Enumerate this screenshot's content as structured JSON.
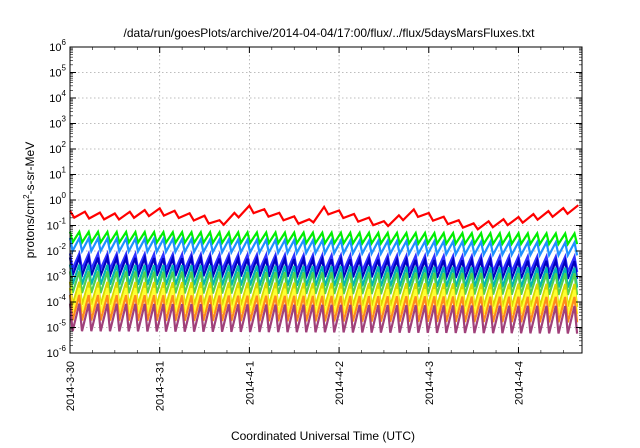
{
  "chart_data": {
    "type": "line",
    "title": "/data/run/goesPlots/archive/2014-04-04/17:00/flux/../flux/5daysMarsFluxes.txt",
    "xlabel": "Coordinated Universal Time (UTC)",
    "ylabel": "protons/cm²-s-sr-MeV",
    "y_scale": "log",
    "ylim": [
      1e-06,
      1000000
    ],
    "y_ticks": [
      {
        "value": 1e-06,
        "base": "10",
        "exp": "-6"
      },
      {
        "value": 1e-05,
        "base": "10",
        "exp": "-5"
      },
      {
        "value": 0.0001,
        "base": "10",
        "exp": "-4"
      },
      {
        "value": 0.001,
        "base": "10",
        "exp": "-3"
      },
      {
        "value": 0.01,
        "base": "10",
        "exp": "-2"
      },
      {
        "value": 0.1,
        "base": "10",
        "exp": "-1"
      },
      {
        "value": 1,
        "base": "10",
        "exp": "0"
      },
      {
        "value": 10,
        "base": "10",
        "exp": "1"
      },
      {
        "value": 100,
        "base": "10",
        "exp": "2"
      },
      {
        "value": 1000,
        "base": "10",
        "exp": "3"
      },
      {
        "value": 10000,
        "base": "10",
        "exp": "4"
      },
      {
        "value": 100000,
        "base": "10",
        "exp": "5"
      },
      {
        "value": 1000000,
        "base": "10",
        "exp": "6"
      }
    ],
    "x_date_ticks": [
      "2014-3-30",
      "2014-3-31",
      "2014-4-1",
      "2014-4-2",
      "2014-4-3",
      "2014-4-4"
    ],
    "x_range": [
      "2014-03-30 00:00",
      "2014-04-04 17:00"
    ],
    "grid": true,
    "legend": "none",
    "series": [
      {
        "color": "#ff0000",
        "period_hours": 4.0,
        "peaks_ratio": 1.8,
        "envelope": [
          {
            "x": "2014-03-30 00:00",
            "y": 0.28
          },
          {
            "x": "2014-03-30 12:00",
            "y": 0.22
          },
          {
            "x": "2014-03-31 00:00",
            "y": 0.35
          },
          {
            "x": "2014-03-31 12:00",
            "y": 0.18
          },
          {
            "x": "2014-03-31 16:00",
            "y": 0.12
          },
          {
            "x": "2014-04-01 00:00",
            "y": 0.45
          },
          {
            "x": "2014-04-01 12:00",
            "y": 0.17
          },
          {
            "x": "2014-04-01 16:00",
            "y": 0.13
          },
          {
            "x": "2014-04-01 20:00",
            "y": 0.4
          },
          {
            "x": "2014-04-02 12:00",
            "y": 0.11
          },
          {
            "x": "2014-04-02 20:00",
            "y": 0.32
          },
          {
            "x": "2014-04-03 06:00",
            "y": 0.14
          },
          {
            "x": "2014-04-03 12:00",
            "y": 0.09
          },
          {
            "x": "2014-04-04 00:00",
            "y": 0.16
          },
          {
            "x": "2014-04-04 17:00",
            "y": 0.5
          }
        ]
      },
      {
        "color": "#00ee00",
        "period_hours": 2.5,
        "peaks_ratio": 2.6,
        "envelope": [
          {
            "x": "2014-03-30 00:00",
            "y": 0.035
          },
          {
            "x": "2014-04-04 17:00",
            "y": 0.03
          }
        ]
      },
      {
        "color": "#1e90ff",
        "period_hours": 2.5,
        "peaks_ratio": 3.2,
        "envelope": [
          {
            "x": "2014-03-30 00:00",
            "y": 0.018
          },
          {
            "x": "2014-04-04 17:00",
            "y": 0.012
          }
        ]
      },
      {
        "color": "#3030ff",
        "period_hours": 2.5,
        "peaks_ratio": 4.0,
        "envelope": [
          {
            "x": "2014-03-30 00:00",
            "y": 0.004
          },
          {
            "x": "2014-04-04 17:00",
            "y": 0.003
          }
        ]
      },
      {
        "color": "#0000c0",
        "period_hours": 2.5,
        "peaks_ratio": 5.0,
        "envelope": [
          {
            "x": "2014-03-30 00:00",
            "y": 0.0025
          },
          {
            "x": "2014-04-04 17:00",
            "y": 0.0018
          }
        ]
      },
      {
        "color": "#00b4b4",
        "period_hours": 2.5,
        "peaks_ratio": 6.0,
        "envelope": [
          {
            "x": "2014-03-30 00:00",
            "y": 0.0012
          },
          {
            "x": "2014-04-04 17:00",
            "y": 0.0009
          }
        ]
      },
      {
        "color": "#50d050",
        "period_hours": 2.5,
        "peaks_ratio": 7.0,
        "envelope": [
          {
            "x": "2014-03-30 00:00",
            "y": 0.0006
          },
          {
            "x": "2014-04-04 17:00",
            "y": 0.0005
          }
        ]
      },
      {
        "color": "#d8d800",
        "period_hours": 2.5,
        "peaks_ratio": 8.0,
        "envelope": [
          {
            "x": "2014-03-30 00:00",
            "y": 0.00022
          },
          {
            "x": "2014-04-04 17:00",
            "y": 0.00018
          }
        ]
      },
      {
        "color": "#ffff30",
        "period_hours": 2.5,
        "peaks_ratio": 9.0,
        "envelope": [
          {
            "x": "2014-03-30 00:00",
            "y": 0.00012
          },
          {
            "x": "2014-04-04 17:00",
            "y": 0.0001
          }
        ]
      },
      {
        "color": "#ff8c1a",
        "period_hours": 2.5,
        "peaks_ratio": 10.0,
        "envelope": [
          {
            "x": "2014-03-30 00:00",
            "y": 6e-05
          },
          {
            "x": "2014-04-04 17:00",
            "y": 5e-05
          }
        ]
      },
      {
        "color": "#a0407a",
        "period_hours": 2.5,
        "peaks_ratio": 12.0,
        "envelope": [
          {
            "x": "2014-03-30 00:00",
            "y": 2.5e-05
          },
          {
            "x": "2014-04-04 17:00",
            "y": 2e-05
          }
        ]
      }
    ]
  }
}
